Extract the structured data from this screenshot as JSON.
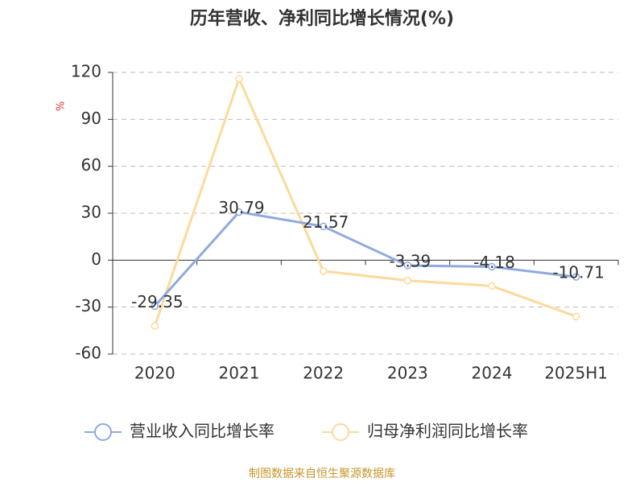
{
  "chart_data": {
    "type": "line",
    "title": "历年营收、净利同比增长情况(%)",
    "y_label": "%",
    "categories": [
      "2020",
      "2021",
      "2022",
      "2023",
      "2024",
      "2025H1"
    ],
    "series": [
      {
        "name": "营业收入同比增长率",
        "color": "#8faadc",
        "values": [
          -29.35,
          30.79,
          21.57,
          -3.39,
          -4.18,
          -10.71
        ],
        "show_labels": true
      },
      {
        "name": "归母净利润同比增长率",
        "color": "#fdd99b",
        "values": [
          -42,
          116,
          -7,
          -13,
          -16.5,
          -36
        ],
        "show_labels": false
      }
    ],
    "ylim": [
      -60,
      120
    ],
    "yticks": [
      -60,
      -30,
      0,
      30,
      60,
      90,
      120
    ],
    "grid": true,
    "source": "制图数据来自恒生聚源数据库"
  }
}
